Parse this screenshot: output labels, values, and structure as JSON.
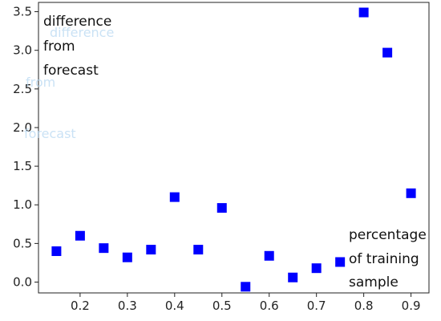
{
  "chart_data": {
    "type": "scatter",
    "title": "",
    "xlabel": "",
    "ylabel": "",
    "xlim": [
      0.112,
      0.938
    ],
    "ylim": [
      -0.14,
      3.62
    ],
    "x_ticks": [
      0.2,
      0.3,
      0.4,
      0.5,
      0.6,
      0.7,
      0.8,
      0.9
    ],
    "x_tick_labels": [
      "0.2",
      "0.3",
      "0.4",
      "0.5",
      "0.6",
      "0.7",
      "0.8",
      "0.9"
    ],
    "y_ticks": [
      0.0,
      0.5,
      1.0,
      1.5,
      2.0,
      2.5,
      3.0,
      3.5
    ],
    "y_tick_labels": [
      "0.0",
      "0.5",
      "1.0",
      "1.5",
      "2.0",
      "2.5",
      "3.0",
      "3.5"
    ],
    "grid": false,
    "marker": "square",
    "color": "#0000ff",
    "x": [
      0.15,
      0.2,
      0.25,
      0.3,
      0.35,
      0.4,
      0.45,
      0.5,
      0.55,
      0.6,
      0.65,
      0.7,
      0.75,
      0.8,
      0.85,
      0.9
    ],
    "y": [
      0.4,
      0.6,
      0.44,
      0.32,
      0.42,
      1.1,
      0.42,
      0.96,
      -0.06,
      0.34,
      0.06,
      0.18,
      0.26,
      3.49,
      2.97,
      1.15
    ],
    "annotations": {
      "top_left": [
        "difference",
        "from",
        "forecast"
      ],
      "bottom_right": [
        "percentage",
        "of training",
        "sample"
      ]
    }
  }
}
